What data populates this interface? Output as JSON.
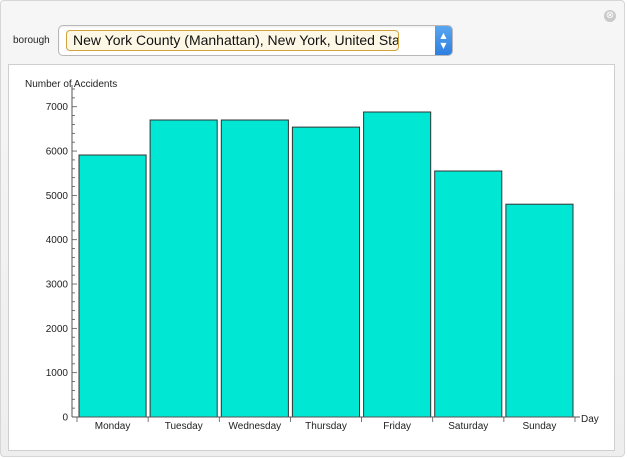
{
  "controls": {
    "borough_label": "borough",
    "borough_selected": "New York County (Manhattan), New York, United States",
    "close_glyph": "⊗",
    "arrows_up": "▲",
    "arrows_down": "▼"
  },
  "chart_data": {
    "type": "bar",
    "ylabel": "Number of Accidents",
    "xlabel": "Day",
    "categories": [
      "Monday",
      "Tuesday",
      "Wednesday",
      "Thursday",
      "Friday",
      "Saturday",
      "Sunday"
    ],
    "values": [
      5910,
      6700,
      6700,
      6540,
      6880,
      5550,
      4800
    ],
    "ylim": [
      0,
      7400
    ],
    "yticks": [
      0,
      1000,
      2000,
      3000,
      4000,
      5000,
      6000,
      7000
    ],
    "ytick_labels": [
      "0",
      "1000",
      "2000",
      "3000",
      "4000",
      "5000",
      "6000",
      "7000"
    ],
    "grid": false,
    "bar_color": "#00e8d4",
    "bar_edge_color": "#333333"
  }
}
